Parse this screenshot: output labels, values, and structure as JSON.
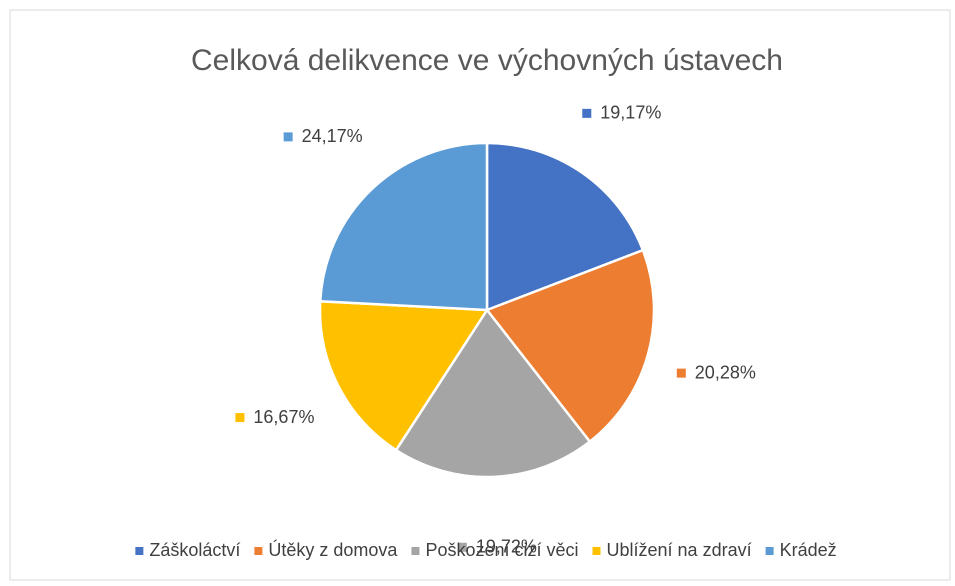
{
  "chart_data": {
    "type": "pie",
    "title": "Celková delikvence ve výchovných ústavech",
    "categories": [
      "Záškoláctví",
      "Útěky z domova",
      "Poškození cizí věci",
      "Ublížení na zdraví",
      "Krádež"
    ],
    "values": [
      19.17,
      20.28,
      19.72,
      16.67,
      24.17
    ],
    "value_labels": [
      "19,17%",
      "20,28%",
      "19,72%",
      "16,67%",
      "24,17%"
    ],
    "colors": [
      "#4472c4",
      "#ed7d31",
      "#a5a5a5",
      "#ffc000",
      "#5b9bd5"
    ],
    "legend": "bottom"
  }
}
